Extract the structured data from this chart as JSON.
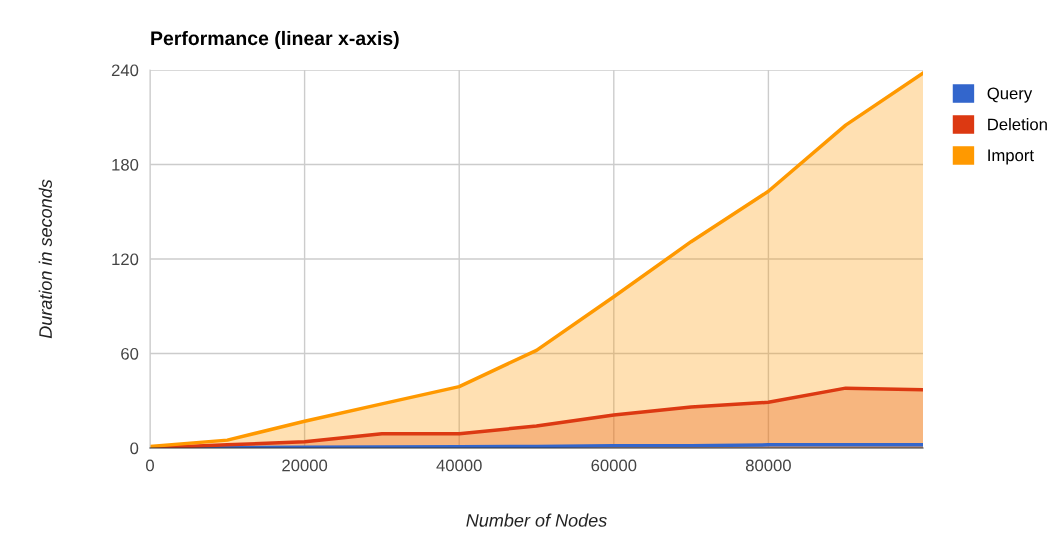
{
  "chart_data": {
    "type": "area",
    "title": "Performance (linear x-axis)",
    "xlabel": "Number of Nodes",
    "ylabel": "Duration in seconds",
    "x": [
      0,
      10000,
      20000,
      30000,
      40000,
      50000,
      60000,
      70000,
      80000,
      90000,
      100000
    ],
    "series": [
      {
        "name": "Query",
        "color": "#3366cc",
        "values": [
          0,
          0.3,
          0.5,
          0.7,
          0.8,
          1,
          1.5,
          1.5,
          2,
          2,
          2
        ]
      },
      {
        "name": "Deletion",
        "color": "#dc3912",
        "values": [
          0,
          2,
          4,
          9,
          9,
          14,
          21,
          26,
          29,
          38,
          37
        ]
      },
      {
        "name": "Import",
        "color": "#ff9900",
        "values": [
          1,
          5,
          17,
          28,
          39,
          62,
          96,
          131,
          163,
          205,
          238
        ]
      }
    ],
    "xlim": [
      0,
      100000
    ],
    "xticks": [
      0,
      20000,
      40000,
      60000,
      80000
    ],
    "ylim": [
      0,
      240
    ],
    "yticks": [
      0,
      60,
      120,
      180,
      240
    ],
    "grid": true,
    "legend": "top right"
  }
}
